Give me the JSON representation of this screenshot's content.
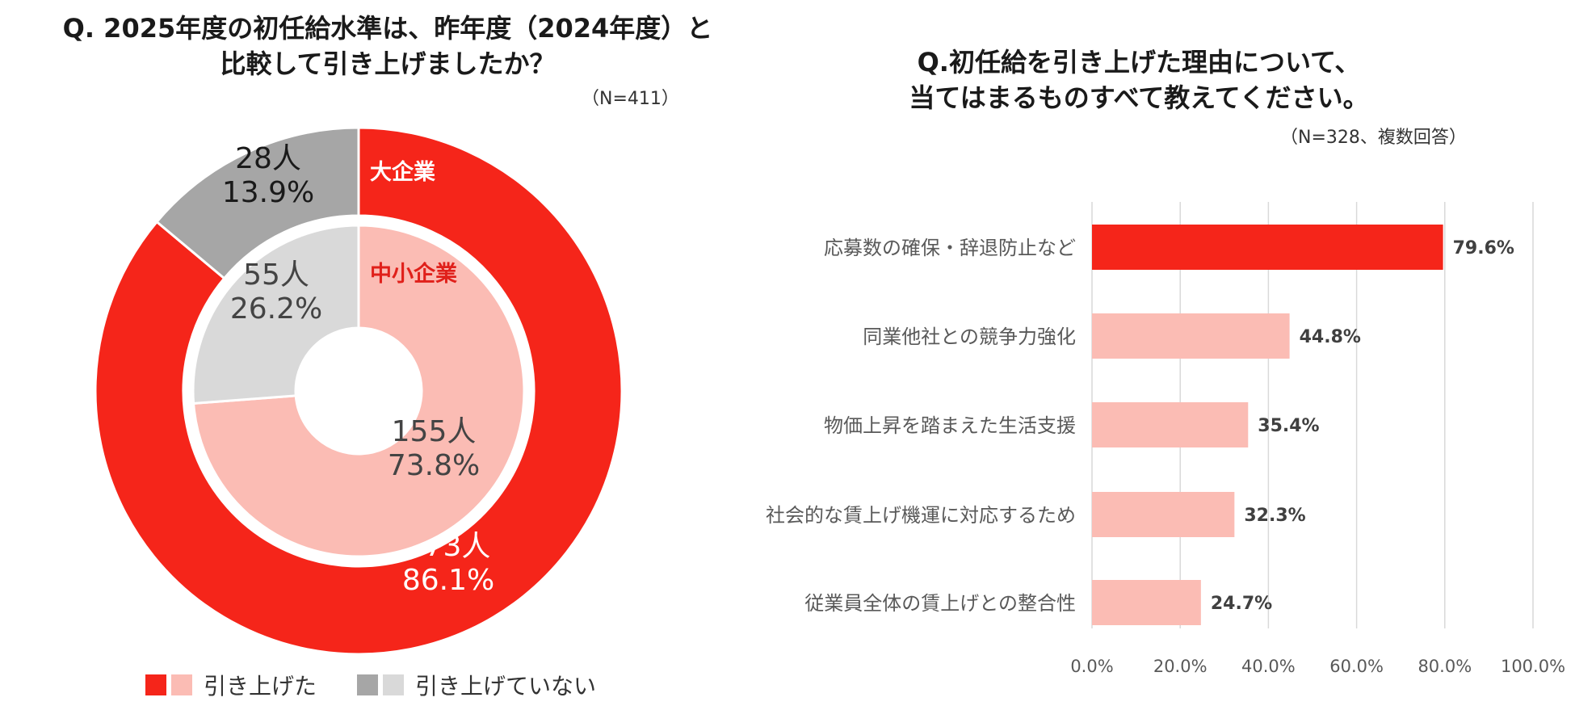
{
  "left": {
    "title_line1": "Q. 2025年度の初任給水準は、昨年度（2024年度）と",
    "title_line2": "比較して引き上げましたか？",
    "n_note": "（N=411）",
    "legend": [
      {
        "label": "引き上げた",
        "colors": [
          "#f5251a",
          "#fbbcb4"
        ]
      },
      {
        "label": "引き上げていない",
        "colors": [
          "#a6a6a6",
          "#d9d9d9"
        ]
      }
    ]
  },
  "right": {
    "title_line1": "Q.初任給を引き上げた理由について、",
    "title_line2": "当てはまるものすべて教えてください。",
    "n_note": "（N=328、複数回答）"
  },
  "chart_data": [
    {
      "type": "pie",
      "subtype": "donut",
      "rings": [
        {
          "name": "大企業",
          "ring": "outer",
          "slices": [
            {
              "label": "引き上げた",
              "count_label": "173人",
              "percent_label": "86.1%",
              "value": 86.1,
              "color": "#f5251a"
            },
            {
              "label": "引き上げていない",
              "count_label": "28人",
              "percent_label": "13.9%",
              "value": 13.9,
              "color": "#a6a6a6"
            }
          ]
        },
        {
          "name": "中小企業",
          "ring": "inner",
          "slices": [
            {
              "label": "引き上げた",
              "count_label": "155人",
              "percent_label": "73.8%",
              "value": 73.8,
              "color": "#fbbcb4"
            },
            {
              "label": "引き上げていない",
              "count_label": "55人",
              "percent_label": "26.2%",
              "value": 26.2,
              "color": "#d9d9d9"
            }
          ]
        }
      ],
      "ring_label_colors": {
        "大企業": "#ffffff",
        "中小企業": "#e0201a"
      }
    },
    {
      "type": "bar",
      "orientation": "horizontal",
      "categories": [
        "応募数の確保・辞退防止など",
        "同業他社との競争力強化",
        "物価上昇を踏まえた生活支援",
        "社会的な賃上げ機運に対応するため",
        "従業員全体の賃上げとの整合性"
      ],
      "values": [
        79.6,
        44.8,
        35.4,
        32.3,
        24.7
      ],
      "value_labels": [
        "79.6%",
        "44.8%",
        "35.4%",
        "32.3%",
        "24.7%"
      ],
      "colors": [
        "#f5251a",
        "#fbbcb4",
        "#fbbcb4",
        "#fbbcb4",
        "#fbbcb4"
      ],
      "xlim": [
        0,
        100
      ],
      "xticks": [
        "0.0%",
        "20.0%",
        "40.0%",
        "60.0%",
        "80.0%",
        "100.0%"
      ],
      "grid": true
    }
  ]
}
